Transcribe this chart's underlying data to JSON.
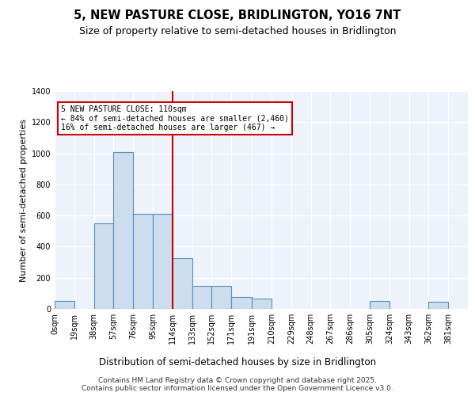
{
  "title": "5, NEW PASTURE CLOSE, BRIDLINGTON, YO16 7NT",
  "subtitle": "Size of property relative to semi-detached houses in Bridlington",
  "xlabel": "Distribution of semi-detached houses by size in Bridlington",
  "ylabel": "Number of semi-detached properties",
  "bin_labels": [
    "0sqm",
    "19sqm",
    "38sqm",
    "57sqm",
    "76sqm",
    "95sqm",
    "114sqm",
    "133sqm",
    "152sqm",
    "171sqm",
    "191sqm",
    "210sqm",
    "229sqm",
    "248sqm",
    "267sqm",
    "286sqm",
    "305sqm",
    "324sqm",
    "343sqm",
    "362sqm",
    "381sqm"
  ],
  "bar_values": [
    50,
    0,
    550,
    1010,
    610,
    610,
    325,
    150,
    150,
    75,
    65,
    0,
    0,
    0,
    0,
    0,
    50,
    0,
    0,
    45,
    0
  ],
  "bin_edges": [
    0,
    19,
    38,
    57,
    76,
    95,
    114,
    133,
    152,
    171,
    191,
    210,
    229,
    248,
    267,
    286,
    305,
    324,
    343,
    362,
    381
  ],
  "property_line_x": 114,
  "annotation_text": "5 NEW PASTURE CLOSE: 110sqm\n← 84% of semi-detached houses are smaller (2,460)\n16% of semi-detached houses are larger (467) →",
  "bar_color": "#ccdded",
  "bar_edge_color": "#5590bb",
  "vline_color": "#cc0000",
  "annotation_box_color": "#cc0000",
  "background_color": "#eef2fb",
  "footer": "Contains HM Land Registry data © Crown copyright and database right 2025.\nContains public sector information licensed under the Open Government Licence v3.0.",
  "ylim": [
    0,
    1400
  ],
  "yticks": [
    0,
    200,
    400,
    600,
    800,
    1000,
    1200,
    1400
  ],
  "title_fontsize": 10.5,
  "subtitle_fontsize": 9,
  "tick_fontsize": 7,
  "ylabel_fontsize": 8,
  "xlabel_fontsize": 8.5,
  "footer_fontsize": 6.5
}
